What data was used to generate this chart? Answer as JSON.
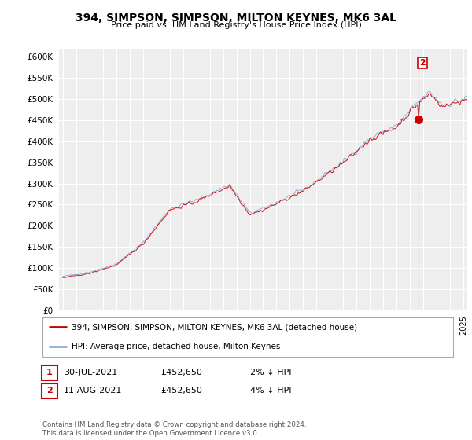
{
  "title": "394, SIMPSON, SIMPSON, MILTON KEYNES, MK6 3AL",
  "subtitle": "Price paid vs. HM Land Registry's House Price Index (HPI)",
  "legend_line1": "394, SIMPSON, SIMPSON, MILTON KEYNES, MK6 3AL (detached house)",
  "legend_line2": "HPI: Average price, detached house, Milton Keynes",
  "annotation1_date": "30-JUL-2021",
  "annotation1_price": "£452,650",
  "annotation1_hpi": "2% ↓ HPI",
  "annotation2_date": "11-AUG-2021",
  "annotation2_price": "£452,650",
  "annotation2_hpi": "4% ↓ HPI",
  "footer": "Contains HM Land Registry data © Crown copyright and database right 2024.\nThis data is licensed under the Open Government Licence v3.0.",
  "price_color": "#cc0000",
  "hpi_color": "#88aadd",
  "ylim": [
    0,
    620000
  ],
  "yticks": [
    0,
    50000,
    100000,
    150000,
    200000,
    250000,
    300000,
    350000,
    400000,
    450000,
    500000,
    550000,
    600000
  ],
  "background_color": "#ffffff",
  "plot_bg_color": "#eeeeee",
  "grid_color": "#ffffff",
  "sale_year": 2021.62,
  "sale_price": 452650,
  "xmin": 1994.7,
  "xmax": 2025.3
}
